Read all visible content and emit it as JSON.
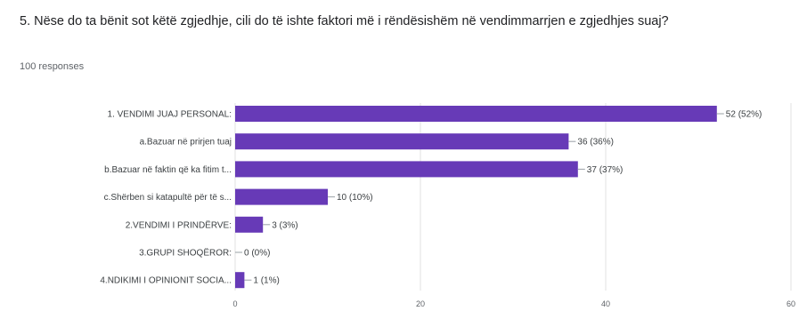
{
  "question": {
    "title": "5. Nëse do ta bënit sot këtë zgjedhje, cili do të ishte faktori më i rëndësishëm në vendimmarrjen e zgjedhjes suaj?",
    "responses": "100 responses"
  },
  "colors": {
    "bar": "#673ab7"
  },
  "chart_data": {
    "type": "bar",
    "orientation": "horizontal",
    "categories": [
      "1. VENDIMI JUAJ PERSONAL:",
      "a.Bazuar në prirjen tuaj",
      "b.Bazuar në faktin që ka fitim t...",
      "c.Shërben si katapultë për të s...",
      "2.VENDIMI I PRINDËRVE:",
      "3.GRUPI SHOQËROR:",
      "4.NDIKIMI I OPINIONIT SOCIA..."
    ],
    "values": [
      52,
      36,
      37,
      10,
      3,
      0,
      1
    ],
    "value_labels": [
      "52 (52%)",
      "36 (36%)",
      "37 (37%)",
      "10 (10%)",
      "3 (3%)",
      "0 (0%)",
      "1 (1%)"
    ],
    "xlim": [
      0,
      60
    ],
    "xticks": [
      "0",
      "20",
      "40",
      "60"
    ],
    "grid": true
  }
}
